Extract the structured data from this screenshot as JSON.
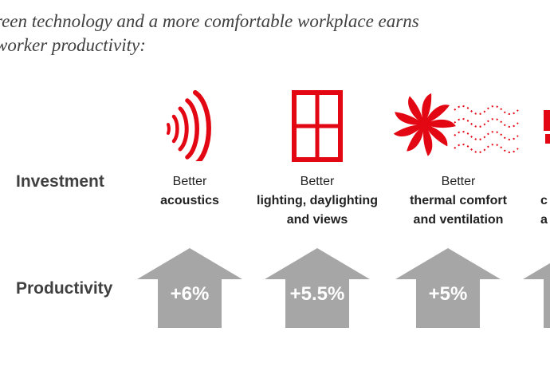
{
  "title": {
    "line1": "reen technology and a more comfortable workplace earns",
    "line2": "worker productivity:"
  },
  "labels": {
    "investment": "Investment",
    "productivity": "Productivity"
  },
  "colors": {
    "accent": "#e30613",
    "arrow": "#a6a6a6"
  },
  "columns": [
    {
      "icon": "acoustics-icon",
      "pre": "Better",
      "main_line1": "acoustics",
      "main_line2": "",
      "gain": "+6%"
    },
    {
      "icon": "window-icon",
      "pre": "Better",
      "main_line1": "lighting, daylighting",
      "main_line2": "and views",
      "gain": "+5.5%"
    },
    {
      "icon": "fan-icon",
      "pre": "Better",
      "main_line1": "thermal comfort",
      "main_line2": "and ventilation",
      "gain": "+5%"
    },
    {
      "icon": "partial-icon",
      "pre": "",
      "main_line1": "c",
      "main_line2": "a",
      "gain": ""
    }
  ]
}
